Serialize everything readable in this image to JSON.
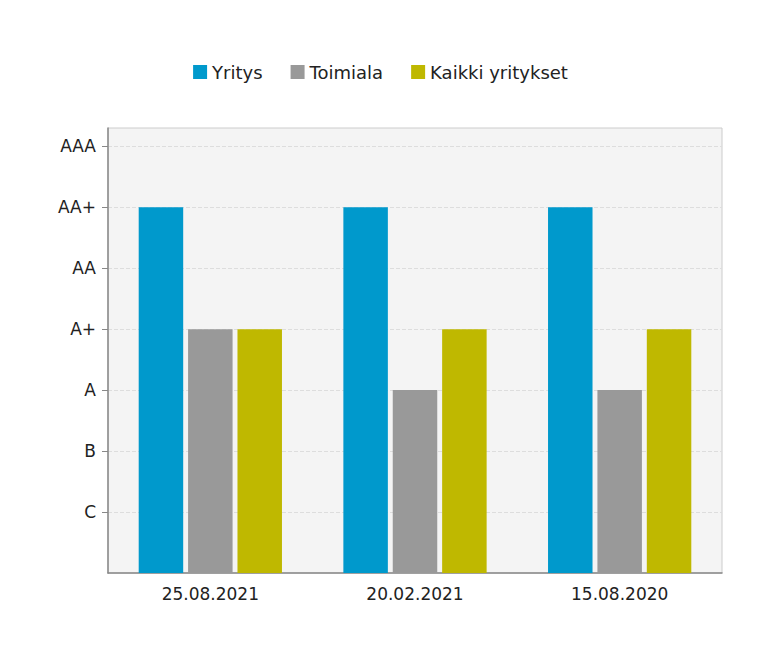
{
  "chart_data": {
    "type": "bar",
    "categories": [
      "25.08.2021",
      "20.02.2021",
      "15.08.2020"
    ],
    "series": [
      {
        "name": "Yritys",
        "color": "#0099cc",
        "values": [
          6,
          6,
          6
        ]
      },
      {
        "name": "Toimiala",
        "color": "#999999",
        "values": [
          4,
          3,
          3
        ]
      },
      {
        "name": "Kaikki yritykset",
        "color": "#bfb800",
        "values": [
          4,
          4,
          4
        ]
      }
    ],
    "ylim": [
      0,
      7.3
    ],
    "yticks": [
      {
        "value": 1,
        "label": "C"
      },
      {
        "value": 2,
        "label": "B"
      },
      {
        "value": 3,
        "label": "A"
      },
      {
        "value": 4,
        "label": "A+"
      },
      {
        "value": 5,
        "label": "AA"
      },
      {
        "value": 6,
        "label": "AA+"
      },
      {
        "value": 7,
        "label": "AAA"
      }
    ],
    "grid": true,
    "legend": "top"
  }
}
